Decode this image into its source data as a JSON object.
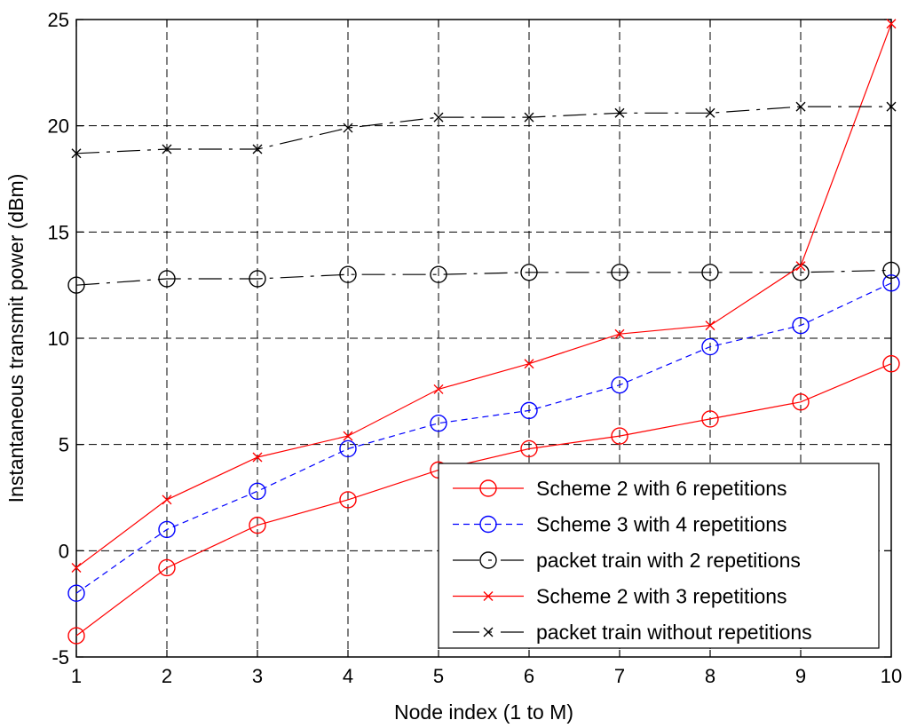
{
  "chart_data": {
    "type": "line",
    "title": "",
    "xlabel": "Node index (1 to M)",
    "ylabel": "Instantaneous transmit power (dBm)",
    "xlim": [
      1,
      10
    ],
    "ylim": [
      -5,
      25
    ],
    "xticks": [
      1,
      2,
      3,
      4,
      5,
      6,
      7,
      8,
      9,
      10
    ],
    "yticks": [
      -5,
      0,
      5,
      10,
      15,
      20,
      25
    ],
    "grid": true,
    "legend_position": "bottom-right",
    "x": [
      1,
      2,
      3,
      4,
      5,
      6,
      7,
      8,
      9,
      10
    ],
    "series": [
      {
        "name": "Scheme 2 with 6 repetitions",
        "color": "#ff0000",
        "line_style": "solid",
        "marker": "circle",
        "values": [
          -4.0,
          -0.8,
          1.2,
          2.4,
          3.8,
          4.8,
          5.4,
          6.2,
          7.0,
          8.8
        ]
      },
      {
        "name": "Scheme 3 with 4 repetitions",
        "color": "#0000ff",
        "line_style": "dashed",
        "marker": "circle",
        "values": [
          -2.0,
          1.0,
          2.8,
          4.8,
          6.0,
          6.6,
          7.8,
          9.6,
          10.6,
          12.6
        ]
      },
      {
        "name": "packet train with 2 repetitions",
        "color": "#000000",
        "line_style": "dashdot",
        "marker": "circle",
        "values": [
          12.5,
          12.8,
          12.8,
          13.0,
          13.0,
          13.1,
          13.1,
          13.1,
          13.1,
          13.2
        ]
      },
      {
        "name": "Scheme 2 with 3 repetitions",
        "color": "#ff0000",
        "line_style": "solid",
        "marker": "x",
        "values": [
          -0.8,
          2.4,
          4.4,
          5.4,
          7.6,
          8.8,
          10.2,
          10.6,
          13.4,
          24.8
        ]
      },
      {
        "name": "packet train without repetitions",
        "color": "#000000",
        "line_style": "dashdot",
        "marker": "x",
        "values": [
          18.7,
          18.9,
          18.9,
          19.9,
          20.4,
          20.4,
          20.6,
          20.6,
          20.9,
          20.9
        ]
      }
    ]
  }
}
